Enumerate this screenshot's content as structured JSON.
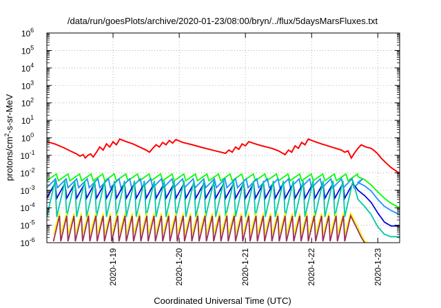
{
  "chart_data": {
    "type": "line",
    "title": "/data/run/goesPlots/archive/2020-01-23/08:00/bryn/../flux/5daysMarsFluxes.txt",
    "xlabel": "Coordinated Universal Time (UTC)",
    "ylabel": {
      "base": "protons/cm",
      "sup": "2",
      "rest": "-s-sr-MeV"
    },
    "x_unit": "days since 2020-01-18 00:00 UTC",
    "xlim": [
      0.0,
      5.33
    ],
    "x_ticks": [
      {
        "x": 1,
        "label": "2020-1-19"
      },
      {
        "x": 2,
        "label": "2020-1-20"
      },
      {
        "x": 3,
        "label": "2020-1-21"
      },
      {
        "x": 4,
        "label": "2020-1-22"
      },
      {
        "x": 5,
        "label": "2020-1-23"
      }
    ],
    "y_scale": "log",
    "ylim_exp": [
      -6,
      6
    ],
    "y_ticks": [
      {
        "exp": 6,
        "base": "10",
        "sup": "6"
      },
      {
        "exp": 5,
        "base": "10",
        "sup": "5"
      },
      {
        "exp": 4,
        "base": "10",
        "sup": "4"
      },
      {
        "exp": 3,
        "base": "10",
        "sup": "3"
      },
      {
        "exp": 2,
        "base": "10",
        "sup": "2"
      },
      {
        "exp": 1,
        "base": "10",
        "sup": "1"
      },
      {
        "exp": 0,
        "base": "10",
        "sup": "0"
      },
      {
        "exp": -1,
        "base": "10",
        "sup": "-1"
      },
      {
        "exp": -2,
        "base": "10",
        "sup": "-2"
      },
      {
        "exp": -3,
        "base": "10",
        "sup": "-3"
      },
      {
        "exp": -4,
        "base": "10",
        "sup": "-4"
      },
      {
        "exp": -5,
        "base": "10",
        "sup": "-5"
      },
      {
        "exp": -6,
        "base": "10",
        "sup": "-6"
      }
    ],
    "grid": "dotted",
    "legend": "none",
    "series": [
      {
        "color": "#ff0000",
        "points": [
          [
            0.0,
            0.6
          ],
          [
            0.12,
            0.45
          ],
          [
            0.25,
            0.28
          ],
          [
            0.35,
            0.18
          ],
          [
            0.45,
            0.12
          ],
          [
            0.5,
            0.09
          ],
          [
            0.55,
            0.11
          ],
          [
            0.58,
            0.07
          ],
          [
            0.62,
            0.1
          ],
          [
            0.66,
            0.12
          ],
          [
            0.7,
            0.08
          ],
          [
            0.75,
            0.15
          ],
          [
            0.8,
            0.3
          ],
          [
            0.85,
            0.2
          ],
          [
            0.9,
            0.45
          ],
          [
            0.95,
            0.3
          ],
          [
            1.0,
            0.6
          ],
          [
            1.05,
            0.4
          ],
          [
            1.1,
            0.85
          ],
          [
            1.2,
            0.6
          ],
          [
            1.3,
            0.45
          ],
          [
            1.4,
            0.3
          ],
          [
            1.5,
            0.2
          ],
          [
            1.55,
            0.15
          ],
          [
            1.6,
            0.25
          ],
          [
            1.65,
            0.4
          ],
          [
            1.7,
            0.3
          ],
          [
            1.75,
            0.55
          ],
          [
            1.8,
            0.4
          ],
          [
            1.85,
            0.7
          ],
          [
            1.9,
            0.5
          ],
          [
            1.95,
            0.8
          ],
          [
            2.05,
            0.55
          ],
          [
            2.2,
            0.4
          ],
          [
            2.35,
            0.28
          ],
          [
            2.5,
            0.2
          ],
          [
            2.6,
            0.16
          ],
          [
            2.7,
            0.13
          ],
          [
            2.75,
            0.2
          ],
          [
            2.8,
            0.15
          ],
          [
            2.85,
            0.3
          ],
          [
            2.9,
            0.22
          ],
          [
            2.95,
            0.45
          ],
          [
            3.0,
            0.35
          ],
          [
            3.05,
            0.6
          ],
          [
            3.15,
            0.45
          ],
          [
            3.25,
            0.35
          ],
          [
            3.4,
            0.25
          ],
          [
            3.5,
            0.18
          ],
          [
            3.55,
            0.14
          ],
          [
            3.6,
            0.11
          ],
          [
            3.65,
            0.2
          ],
          [
            3.7,
            0.15
          ],
          [
            3.75,
            0.35
          ],
          [
            3.8,
            0.25
          ],
          [
            3.85,
            0.55
          ],
          [
            3.9,
            0.4
          ],
          [
            3.95,
            0.85
          ],
          [
            4.05,
            0.6
          ],
          [
            4.15,
            0.45
          ],
          [
            4.3,
            0.3
          ],
          [
            4.45,
            0.2
          ],
          [
            4.5,
            0.15
          ],
          [
            4.55,
            0.18
          ],
          [
            4.6,
            0.07
          ],
          [
            4.65,
            0.14
          ],
          [
            4.7,
            0.25
          ],
          [
            4.75,
            0.4
          ],
          [
            4.82,
            0.3
          ],
          [
            4.9,
            0.25
          ],
          [
            4.95,
            0.18
          ],
          [
            5.0,
            0.12
          ],
          [
            5.05,
            0.07
          ],
          [
            5.1,
            0.045
          ],
          [
            5.15,
            0.03
          ],
          [
            5.2,
            0.02
          ],
          [
            5.25,
            0.015
          ],
          [
            5.3,
            0.011
          ],
          [
            5.33,
            0.01
          ]
        ]
      },
      {
        "color": "#00ff00",
        "period": 0.175,
        "start": 0.0,
        "end": 4.65,
        "low": 0.0035,
        "high": 0.0085,
        "tail": [
          [
            4.7,
            0.006
          ],
          [
            4.8,
            0.004
          ],
          [
            4.9,
            0.002
          ],
          [
            5.0,
            0.0008
          ],
          [
            5.1,
            0.00035
          ],
          [
            5.2,
            0.00018
          ],
          [
            5.33,
            0.0001
          ]
        ]
      },
      {
        "color": "#1e90ff",
        "period": 0.16,
        "start": 0.0,
        "end": 4.65,
        "low": 0.0014,
        "high": 0.0045,
        "tail": [
          [
            4.7,
            0.0028
          ],
          [
            4.8,
            0.0018
          ],
          [
            4.9,
            0.0009
          ],
          [
            5.0,
            0.0003
          ],
          [
            5.1,
            0.00012
          ],
          [
            5.2,
            7e-05
          ],
          [
            5.33,
            4e-05
          ]
        ]
      },
      {
        "color": "#0000dd",
        "period": 0.15,
        "start": 0.0,
        "end": 4.65,
        "low": 0.00035,
        "high": 0.0025,
        "tail": [
          [
            4.7,
            0.001
          ],
          [
            4.8,
            0.0005
          ],
          [
            4.9,
            0.0002
          ],
          [
            5.0,
            5e-05
          ],
          [
            5.1,
            1.5e-05
          ],
          [
            5.2,
            9e-06
          ],
          [
            5.33,
            9e-06
          ]
        ]
      },
      {
        "color": "#00c8a0",
        "period": 0.15,
        "start": 0.0,
        "end": 4.65,
        "low": 3e-05,
        "high": 0.0035,
        "tail": [
          [
            4.7,
            0.0003
          ],
          [
            4.8,
            0.00012
          ],
          [
            4.9,
            4e-05
          ],
          [
            5.0,
            8e-06
          ],
          [
            5.1,
            3e-06
          ],
          [
            5.2,
            2.2e-06
          ],
          [
            5.33,
            2.2e-06
          ]
        ]
      },
      {
        "color": "#ffff00",
        "period": 0.11,
        "start": 0.1,
        "end": 4.6,
        "low": 3e-06,
        "high": 5e-05,
        "tail": [
          [
            4.7,
            8e-06
          ],
          [
            4.75,
            3e-06
          ],
          [
            4.8,
            1.2e-06
          ],
          [
            4.85,
            1e-06
          ]
        ]
      },
      {
        "color": "#9b2d5c",
        "period": 0.11,
        "start": 0.1,
        "end": 4.6,
        "low": 1.2e-06,
        "high": 3.5e-05,
        "tail": [
          [
            4.7,
            5e-06
          ],
          [
            4.75,
            2e-06
          ],
          [
            4.8,
            1e-06
          ]
        ]
      }
    ]
  }
}
